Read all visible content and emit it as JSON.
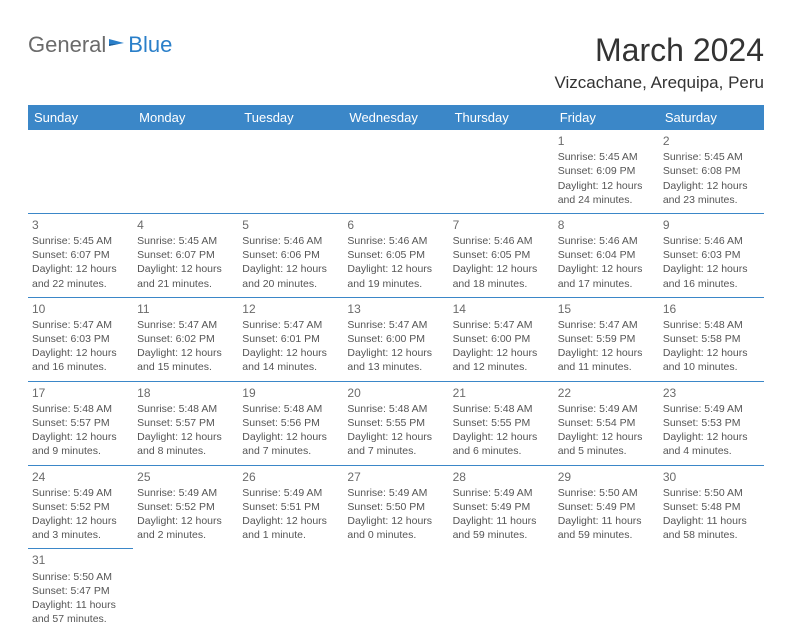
{
  "logo": {
    "text1": "General",
    "text2": "Blue"
  },
  "header": {
    "month_title": "March 2024",
    "location": "Vizcachane, Arequipa, Peru"
  },
  "weekdays": [
    "Sunday",
    "Monday",
    "Tuesday",
    "Wednesday",
    "Thursday",
    "Friday",
    "Saturday"
  ],
  "colors": {
    "header_bg": "#3b87c8",
    "header_text": "#ffffff",
    "border": "#3b87c8",
    "logo_blue": "#2a7fc9",
    "logo_gray": "#6b6b6b",
    "cell_text": "#555555"
  },
  "weeks": [
    [
      null,
      null,
      null,
      null,
      null,
      {
        "d": "1",
        "sr": "Sunrise: 5:45 AM",
        "ss": "Sunset: 6:09 PM",
        "dl1": "Daylight: 12 hours",
        "dl2": "and 24 minutes."
      },
      {
        "d": "2",
        "sr": "Sunrise: 5:45 AM",
        "ss": "Sunset: 6:08 PM",
        "dl1": "Daylight: 12 hours",
        "dl2": "and 23 minutes."
      }
    ],
    [
      {
        "d": "3",
        "sr": "Sunrise: 5:45 AM",
        "ss": "Sunset: 6:07 PM",
        "dl1": "Daylight: 12 hours",
        "dl2": "and 22 minutes."
      },
      {
        "d": "4",
        "sr": "Sunrise: 5:45 AM",
        "ss": "Sunset: 6:07 PM",
        "dl1": "Daylight: 12 hours",
        "dl2": "and 21 minutes."
      },
      {
        "d": "5",
        "sr": "Sunrise: 5:46 AM",
        "ss": "Sunset: 6:06 PM",
        "dl1": "Daylight: 12 hours",
        "dl2": "and 20 minutes."
      },
      {
        "d": "6",
        "sr": "Sunrise: 5:46 AM",
        "ss": "Sunset: 6:05 PM",
        "dl1": "Daylight: 12 hours",
        "dl2": "and 19 minutes."
      },
      {
        "d": "7",
        "sr": "Sunrise: 5:46 AM",
        "ss": "Sunset: 6:05 PM",
        "dl1": "Daylight: 12 hours",
        "dl2": "and 18 minutes."
      },
      {
        "d": "8",
        "sr": "Sunrise: 5:46 AM",
        "ss": "Sunset: 6:04 PM",
        "dl1": "Daylight: 12 hours",
        "dl2": "and 17 minutes."
      },
      {
        "d": "9",
        "sr": "Sunrise: 5:46 AM",
        "ss": "Sunset: 6:03 PM",
        "dl1": "Daylight: 12 hours",
        "dl2": "and 16 minutes."
      }
    ],
    [
      {
        "d": "10",
        "sr": "Sunrise: 5:47 AM",
        "ss": "Sunset: 6:03 PM",
        "dl1": "Daylight: 12 hours",
        "dl2": "and 16 minutes."
      },
      {
        "d": "11",
        "sr": "Sunrise: 5:47 AM",
        "ss": "Sunset: 6:02 PM",
        "dl1": "Daylight: 12 hours",
        "dl2": "and 15 minutes."
      },
      {
        "d": "12",
        "sr": "Sunrise: 5:47 AM",
        "ss": "Sunset: 6:01 PM",
        "dl1": "Daylight: 12 hours",
        "dl2": "and 14 minutes."
      },
      {
        "d": "13",
        "sr": "Sunrise: 5:47 AM",
        "ss": "Sunset: 6:00 PM",
        "dl1": "Daylight: 12 hours",
        "dl2": "and 13 minutes."
      },
      {
        "d": "14",
        "sr": "Sunrise: 5:47 AM",
        "ss": "Sunset: 6:00 PM",
        "dl1": "Daylight: 12 hours",
        "dl2": "and 12 minutes."
      },
      {
        "d": "15",
        "sr": "Sunrise: 5:47 AM",
        "ss": "Sunset: 5:59 PM",
        "dl1": "Daylight: 12 hours",
        "dl2": "and 11 minutes."
      },
      {
        "d": "16",
        "sr": "Sunrise: 5:48 AM",
        "ss": "Sunset: 5:58 PM",
        "dl1": "Daylight: 12 hours",
        "dl2": "and 10 minutes."
      }
    ],
    [
      {
        "d": "17",
        "sr": "Sunrise: 5:48 AM",
        "ss": "Sunset: 5:57 PM",
        "dl1": "Daylight: 12 hours",
        "dl2": "and 9 minutes."
      },
      {
        "d": "18",
        "sr": "Sunrise: 5:48 AM",
        "ss": "Sunset: 5:57 PM",
        "dl1": "Daylight: 12 hours",
        "dl2": "and 8 minutes."
      },
      {
        "d": "19",
        "sr": "Sunrise: 5:48 AM",
        "ss": "Sunset: 5:56 PM",
        "dl1": "Daylight: 12 hours",
        "dl2": "and 7 minutes."
      },
      {
        "d": "20",
        "sr": "Sunrise: 5:48 AM",
        "ss": "Sunset: 5:55 PM",
        "dl1": "Daylight: 12 hours",
        "dl2": "and 7 minutes."
      },
      {
        "d": "21",
        "sr": "Sunrise: 5:48 AM",
        "ss": "Sunset: 5:55 PM",
        "dl1": "Daylight: 12 hours",
        "dl2": "and 6 minutes."
      },
      {
        "d": "22",
        "sr": "Sunrise: 5:49 AM",
        "ss": "Sunset: 5:54 PM",
        "dl1": "Daylight: 12 hours",
        "dl2": "and 5 minutes."
      },
      {
        "d": "23",
        "sr": "Sunrise: 5:49 AM",
        "ss": "Sunset: 5:53 PM",
        "dl1": "Daylight: 12 hours",
        "dl2": "and 4 minutes."
      }
    ],
    [
      {
        "d": "24",
        "sr": "Sunrise: 5:49 AM",
        "ss": "Sunset: 5:52 PM",
        "dl1": "Daylight: 12 hours",
        "dl2": "and 3 minutes."
      },
      {
        "d": "25",
        "sr": "Sunrise: 5:49 AM",
        "ss": "Sunset: 5:52 PM",
        "dl1": "Daylight: 12 hours",
        "dl2": "and 2 minutes."
      },
      {
        "d": "26",
        "sr": "Sunrise: 5:49 AM",
        "ss": "Sunset: 5:51 PM",
        "dl1": "Daylight: 12 hours",
        "dl2": "and 1 minute."
      },
      {
        "d": "27",
        "sr": "Sunrise: 5:49 AM",
        "ss": "Sunset: 5:50 PM",
        "dl1": "Daylight: 12 hours",
        "dl2": "and 0 minutes."
      },
      {
        "d": "28",
        "sr": "Sunrise: 5:49 AM",
        "ss": "Sunset: 5:49 PM",
        "dl1": "Daylight: 11 hours",
        "dl2": "and 59 minutes."
      },
      {
        "d": "29",
        "sr": "Sunrise: 5:50 AM",
        "ss": "Sunset: 5:49 PM",
        "dl1": "Daylight: 11 hours",
        "dl2": "and 59 minutes."
      },
      {
        "d": "30",
        "sr": "Sunrise: 5:50 AM",
        "ss": "Sunset: 5:48 PM",
        "dl1": "Daylight: 11 hours",
        "dl2": "and 58 minutes."
      }
    ],
    [
      {
        "d": "31",
        "sr": "Sunrise: 5:50 AM",
        "ss": "Sunset: 5:47 PM",
        "dl1": "Daylight: 11 hours",
        "dl2": "and 57 minutes."
      },
      null,
      null,
      null,
      null,
      null,
      null
    ]
  ]
}
